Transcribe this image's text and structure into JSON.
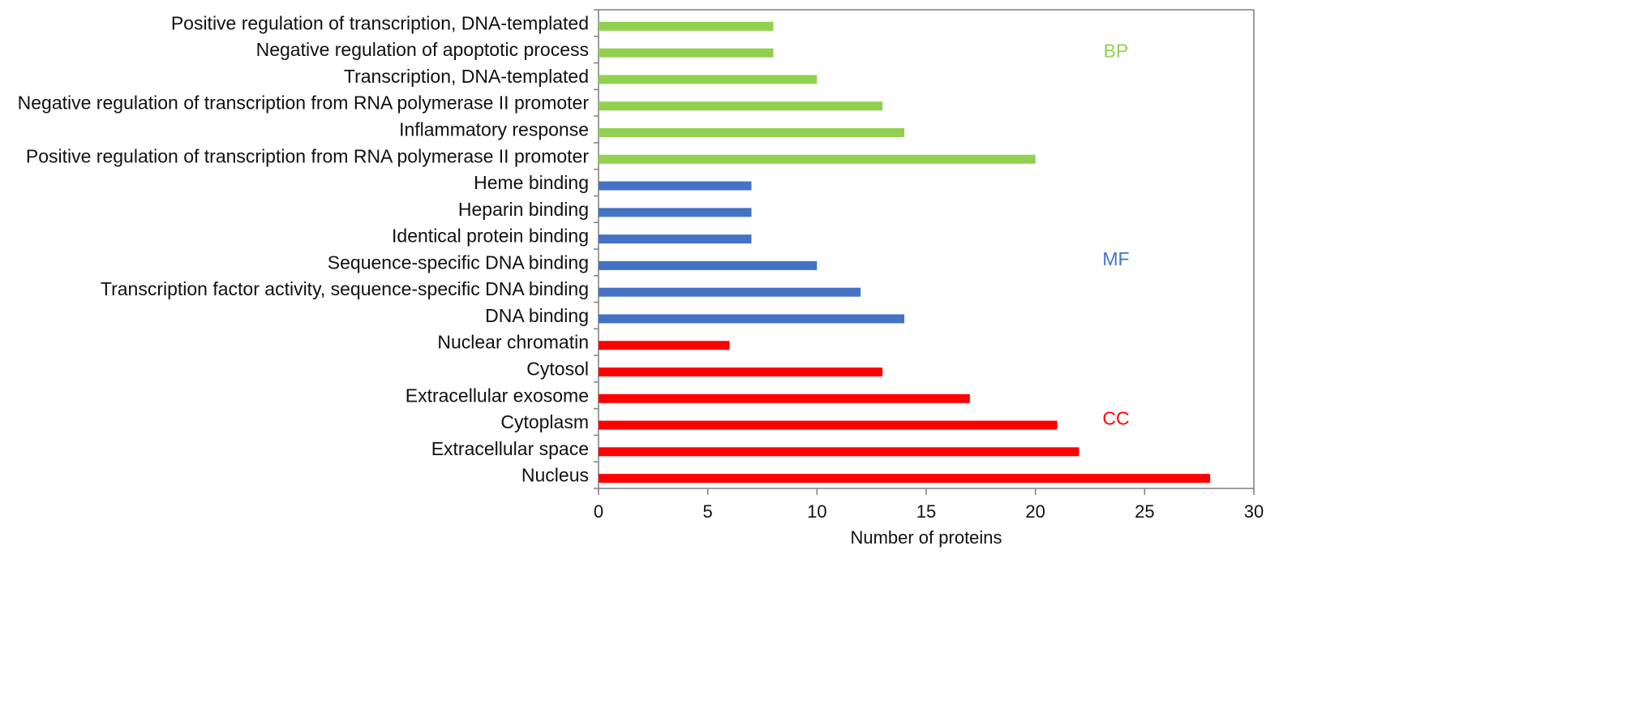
{
  "chart_data": {
    "type": "bar",
    "orientation": "horizontal",
    "title": "",
    "xlabel": "Number of proteins",
    "ylabel": "",
    "xlim": [
      0,
      30
    ],
    "xticks": [
      0,
      5,
      10,
      15,
      20,
      25,
      30
    ],
    "grid": false,
    "colors": {
      "BP": "#92d050",
      "MF": "#4472c4",
      "CC": "#ff0000"
    },
    "groups": [
      {
        "name": "BP",
        "label": "BP"
      },
      {
        "name": "MF",
        "label": "MF"
      },
      {
        "name": "CC",
        "label": "CC"
      }
    ],
    "categories": [
      "Positive regulation of transcription, DNA-templated",
      "Negative regulation of apoptotic process",
      "Transcription, DNA-templated",
      "Negative regulation of transcription from RNA polymerase II promoter",
      "Inflammatory response",
      "Positive regulation of transcription from RNA polymerase II promoter",
      "Heme binding",
      "Heparin binding",
      "Identical protein binding",
      "Sequence-specific DNA binding",
      "Transcription factor activity, sequence-specific DNA binding",
      "DNA binding",
      "Nuclear chromatin",
      "Cytosol",
      "Extracellular exosome",
      "Cytoplasm",
      "Extracellular space",
      "Nucleus"
    ],
    "values": [
      8,
      8,
      10,
      13,
      14,
      20,
      7,
      7,
      7,
      10,
      12,
      14,
      6,
      13,
      17,
      21,
      22,
      28
    ],
    "category_groups": [
      "BP",
      "BP",
      "BP",
      "BP",
      "BP",
      "BP",
      "MF",
      "MF",
      "MF",
      "MF",
      "MF",
      "MF",
      "CC",
      "CC",
      "CC",
      "CC",
      "CC",
      "CC"
    ]
  }
}
